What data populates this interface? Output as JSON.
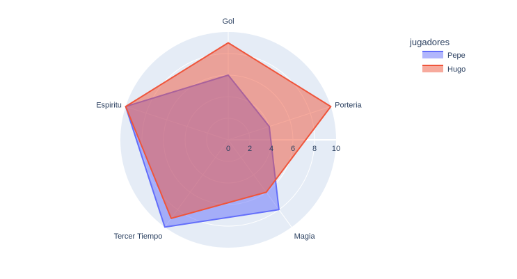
{
  "chart_data": {
    "type": "radar",
    "categories": [
      "Gol",
      "Porteria",
      "Magia",
      "Tercer Tiempo",
      "Espiritu"
    ],
    "radial_ticks": [
      0,
      2,
      4,
      6,
      8,
      10
    ],
    "r_range": [
      0,
      10
    ],
    "legend_title": "jugadores",
    "legend_position": "top-right",
    "series": [
      {
        "name": "Pepe",
        "values": [
          6,
          4,
          8,
          10,
          10
        ],
        "color": "#636efa"
      },
      {
        "name": "Hugo",
        "values": [
          9,
          10,
          6,
          9,
          10
        ],
        "color": "#ef553b"
      }
    ],
    "background_color": "#e5ecf6",
    "grid_color": "#ffffff"
  }
}
